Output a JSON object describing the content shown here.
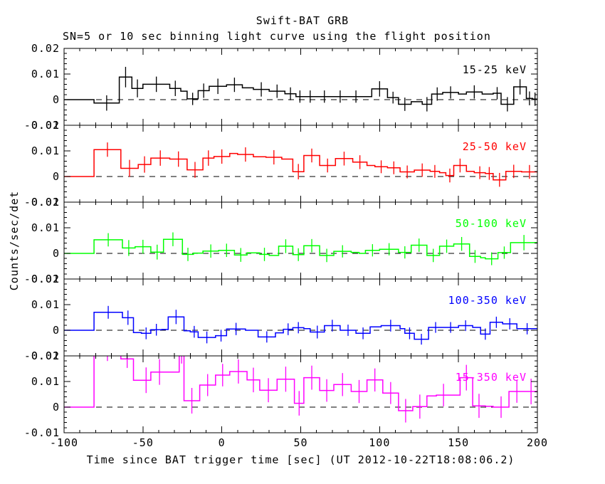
{
  "title": "Swift-BAT GRB",
  "subtitle": "SN=5 or 10 sec binning light curve using the flight position",
  "xlabel": "Time since BAT trigger time [sec] (UT 2012-10-22T18:08:06.2)",
  "ylabel": "Counts/sec/det",
  "x_axis_ticks": [
    {
      "v": -100,
      "label": "-100"
    },
    {
      "v": -50,
      "label": "-50"
    },
    {
      "v": 0,
      "label": "0"
    },
    {
      "v": 50,
      "label": "50"
    },
    {
      "v": 100,
      "label": "100"
    },
    {
      "v": 150,
      "label": "150"
    },
    {
      "v": 200,
      "label": "200"
    }
  ],
  "y_axis_ticks": [
    {
      "v": 0.02,
      "label": "0.02"
    },
    {
      "v": 0.01,
      "label": "0.01"
    },
    {
      "v": 0,
      "label": "0"
    },
    {
      "v": -0.01,
      "label": "-0.01"
    }
  ],
  "chart_data": {
    "type": "line",
    "style": "step-histogram-with-error-bars",
    "xlim": [
      -100,
      200
    ],
    "ylim_per_panel": [
      -0.01,
      0.02
    ],
    "grid": false,
    "zero_line": "dashed",
    "panels": [
      {
        "band": "15-25 keV",
        "color": "#000000",
        "bins": [
          [
            -100,
            -81,
            0,
            null
          ],
          [
            -81,
            -65,
            -0.0013,
            0.003
          ],
          [
            -65,
            -57,
            0.0088,
            0.004
          ],
          [
            -57,
            -50,
            0.0044,
            0.0035
          ],
          [
            -50,
            -33,
            0.006,
            0.003
          ],
          [
            -33,
            -26,
            0.0044,
            0.003
          ],
          [
            -26,
            -22,
            0.0033,
            null
          ],
          [
            -22,
            -15,
            0.0003,
            0.0024
          ],
          [
            -15,
            -8,
            0.0035,
            0.0028
          ],
          [
            -8,
            3,
            0.0052,
            0.003
          ],
          [
            3,
            13,
            0.0058,
            0.0028
          ],
          [
            13,
            20,
            0.0046,
            null
          ],
          [
            20,
            30,
            0.004,
            0.0028
          ],
          [
            30,
            40,
            0.0033,
            0.0026
          ],
          [
            40,
            47,
            0.0023,
            0.0025
          ],
          [
            47,
            52,
            0.0012,
            0.0024
          ],
          [
            52,
            60,
            0.0012,
            0.0024
          ],
          [
            60,
            70,
            0.0012,
            0.0024
          ],
          [
            70,
            80,
            0.0012,
            0.0024
          ],
          [
            80,
            90,
            0.0012,
            0.0024
          ],
          [
            90,
            95,
            0.0012,
            null
          ],
          [
            95,
            105,
            0.0042,
            0.003
          ],
          [
            105,
            112,
            0.0008,
            0.0023
          ],
          [
            112,
            120,
            -0.0018,
            0.0026
          ],
          [
            120,
            127,
            -0.0008,
            null
          ],
          [
            127,
            133,
            -0.0018,
            0.0028
          ],
          [
            133,
            140,
            0.0022,
            0.0026
          ],
          [
            140,
            150,
            0.0028,
            0.0024
          ],
          [
            150,
            155,
            0.0022,
            null
          ],
          [
            155,
            165,
            0.003,
            0.0026
          ],
          [
            165,
            172,
            0.0022,
            null
          ],
          [
            172,
            177,
            0.0025,
            0.0024
          ],
          [
            177,
            185,
            -0.0018,
            0.0028
          ],
          [
            185,
            193,
            0.005,
            0.003
          ],
          [
            193,
            197,
            0.0005,
            0.0027
          ],
          [
            197,
            200,
            0.0002,
            0.0026
          ]
        ]
      },
      {
        "band": "25-50 keV",
        "color": "#ff0000",
        "bins": [
          [
            -100,
            -81,
            0,
            null
          ],
          [
            -81,
            -64,
            0.0105,
            0.0028
          ],
          [
            -64,
            -53,
            0.0032,
            0.0033
          ],
          [
            -53,
            -45,
            0.0047,
            0.0032
          ],
          [
            -45,
            -33,
            0.0072,
            0.003
          ],
          [
            -33,
            -22,
            0.0068,
            0.003
          ],
          [
            -22,
            -12,
            0.0026,
            0.0031
          ],
          [
            -12,
            -5,
            0.0072,
            0.003
          ],
          [
            -5,
            5,
            0.0078,
            0.0028
          ],
          [
            5,
            10,
            0.009,
            null
          ],
          [
            10,
            20,
            0.0086,
            0.0028
          ],
          [
            20,
            28,
            0.0077,
            null
          ],
          [
            28,
            38,
            0.0075,
            0.0028
          ],
          [
            38,
            45,
            0.0068,
            null
          ],
          [
            45,
            52,
            0.0019,
            0.003
          ],
          [
            52,
            62,
            0.0082,
            0.0027
          ],
          [
            62,
            72,
            0.0043,
            0.0027
          ],
          [
            72,
            83,
            0.007,
            0.0027
          ],
          [
            83,
            92,
            0.0056,
            0.0027
          ],
          [
            92,
            97,
            0.0043,
            null
          ],
          [
            97,
            105,
            0.0038,
            0.0025
          ],
          [
            105,
            113,
            0.0034,
            0.0025
          ],
          [
            113,
            122,
            0.0018,
            0.0025
          ],
          [
            122,
            132,
            0.0025,
            0.0026
          ],
          [
            132,
            138,
            0.002,
            0.0025
          ],
          [
            138,
            142,
            0.0015,
            null
          ],
          [
            142,
            147,
            0.0004,
            0.0027
          ],
          [
            147,
            155,
            0.0043,
            0.0027
          ],
          [
            155,
            160,
            0.002,
            null
          ],
          [
            160,
            167,
            0.0015,
            0.0025
          ],
          [
            167,
            172,
            0.0012,
            0.0025
          ],
          [
            172,
            180,
            -0.0013,
            0.0027
          ],
          [
            180,
            190,
            0.002,
            0.0026
          ],
          [
            190,
            200,
            0.0018,
            0.0027
          ]
        ]
      },
      {
        "band": "50-100 keV",
        "color": "#00ff00",
        "bins": [
          [
            -100,
            -81,
            0,
            null
          ],
          [
            -81,
            -63,
            0.0053,
            0.0026
          ],
          [
            -63,
            -55,
            0.0021,
            0.0031
          ],
          [
            -55,
            -45,
            0.0026,
            0.0027
          ],
          [
            -45,
            -37,
            0.0005,
            0.0029
          ],
          [
            -37,
            -25,
            0.0055,
            0.0027
          ],
          [
            -25,
            -18,
            -0.0004,
            0.0026
          ],
          [
            -18,
            -12,
            0.0001,
            null
          ],
          [
            -12,
            -2,
            0.0009,
            0.0026
          ],
          [
            -2,
            8,
            0.0012,
            0.0026
          ],
          [
            8,
            16,
            -0.0006,
            0.0027
          ],
          [
            16,
            24,
            0.0002,
            null
          ],
          [
            24,
            30,
            -0.0004,
            0.0026
          ],
          [
            30,
            36,
            -0.0008,
            null
          ],
          [
            36,
            45,
            0.0028,
            0.0027
          ],
          [
            45,
            52,
            -0.0005,
            0.0025
          ],
          [
            52,
            62,
            0.003,
            0.0026
          ],
          [
            62,
            71,
            -0.0008,
            0.0026
          ],
          [
            71,
            82,
            0.0008,
            0.0024
          ],
          [
            82,
            87,
            0.0004,
            null
          ],
          [
            87,
            91,
            0,
            null
          ],
          [
            91,
            100,
            0.0012,
            0.0024
          ],
          [
            100,
            112,
            0.0016,
            0.0024
          ],
          [
            112,
            120,
            0.0004,
            0.0024
          ],
          [
            120,
            130,
            0.0032,
            0.0026
          ],
          [
            130,
            138,
            -0.0008,
            0.0026
          ],
          [
            138,
            147,
            0.0028,
            0.0026
          ],
          [
            147,
            157,
            0.0037,
            0.0027
          ],
          [
            157,
            164,
            -0.0012,
            0.0025
          ],
          [
            164,
            167,
            -0.0017,
            null
          ],
          [
            167,
            175,
            -0.0021,
            0.0025
          ],
          [
            175,
            183,
            0.0003,
            0.0024
          ],
          [
            183,
            200,
            0.0042,
            0.003
          ]
        ]
      },
      {
        "band": "100-350 keV",
        "color": "#0000ff",
        "bins": [
          [
            -100,
            -81,
            0,
            null
          ],
          [
            -81,
            -63,
            0.007,
            0.0025
          ],
          [
            -63,
            -56,
            0.0049,
            0.0028
          ],
          [
            -56,
            -51,
            -0.0009,
            null
          ],
          [
            -51,
            -45,
            -0.0012,
            0.0023
          ],
          [
            -45,
            -38,
            0.0002,
            0.0023
          ],
          [
            -38,
            -34,
            0.0003,
            null
          ],
          [
            -34,
            -24,
            0.0052,
            0.0028
          ],
          [
            -24,
            -20,
            -0.0002,
            null
          ],
          [
            -20,
            -15,
            -0.0006,
            0.0023
          ],
          [
            -15,
            -4,
            -0.0028,
            0.0023
          ],
          [
            -4,
            3,
            -0.0021,
            0.0023
          ],
          [
            3,
            15,
            0.0005,
            0.0024
          ],
          [
            15,
            23,
            0,
            null
          ],
          [
            23,
            34,
            -0.0026,
            0.0022
          ],
          [
            34,
            39,
            -0.001,
            null
          ],
          [
            39,
            45,
            0.0004,
            0.0023
          ],
          [
            45,
            52,
            0.001,
            0.0022
          ],
          [
            52,
            56,
            0.0006,
            null
          ],
          [
            56,
            65,
            -0.0007,
            0.0025
          ],
          [
            65,
            75,
            0.0018,
            0.0023
          ],
          [
            75,
            85,
            0,
            0.0022
          ],
          [
            85,
            94,
            -0.0012,
            0.0023
          ],
          [
            94,
            101,
            0.0013,
            null
          ],
          [
            101,
            113,
            0.0018,
            0.0023
          ],
          [
            113,
            116,
            0.0006,
            null
          ],
          [
            116,
            122,
            -0.0012,
            0.0023
          ],
          [
            122,
            131,
            -0.0035,
            0.0021
          ],
          [
            131,
            140,
            0.0011,
            0.0021
          ],
          [
            140,
            150,
            0.0011,
            0.0021
          ],
          [
            150,
            159,
            0.0018,
            0.0021
          ],
          [
            159,
            164,
            0.0011,
            null
          ],
          [
            164,
            170,
            -0.0015,
            0.0022
          ],
          [
            170,
            178,
            0.0031,
            0.0022
          ],
          [
            178,
            187,
            0.0025,
            0.0022
          ],
          [
            187,
            200,
            0.0006,
            0.0022
          ]
        ]
      },
      {
        "band": "15-350 keV",
        "color": "#ff00ff",
        "bins": [
          [
            -100,
            -81,
            0,
            null
          ],
          [
            -81,
            -64,
            0.022,
            0.004
          ],
          [
            -64,
            -56,
            0.0188,
            0.0035
          ],
          [
            -56,
            -51,
            0.0105,
            null
          ],
          [
            -51,
            -45,
            0.0105,
            0.005
          ],
          [
            -45,
            -34,
            0.0137,
            0.005
          ],
          [
            -34,
            -27,
            0.0137,
            null
          ],
          [
            -27,
            -24,
            0.021,
            0.004
          ],
          [
            -24,
            -14,
            0.0025,
            0.005
          ],
          [
            -14,
            -4,
            0.0086,
            0.0043
          ],
          [
            -4,
            5,
            0.0125,
            0.0044
          ],
          [
            5,
            16,
            0.0139,
            0.0047
          ],
          [
            16,
            24,
            0.0106,
            0.0048
          ],
          [
            24,
            35,
            0.0066,
            0.0047
          ],
          [
            35,
            46,
            0.0109,
            0.0049
          ],
          [
            46,
            52,
            0.0015,
            0.0048
          ],
          [
            52,
            62,
            0.0115,
            0.0047
          ],
          [
            62,
            71,
            0.0065,
            0.0044
          ],
          [
            71,
            82,
            0.0088,
            0.0045
          ],
          [
            82,
            92,
            0.0061,
            0.0045
          ],
          [
            92,
            102,
            0.0106,
            0.0045
          ],
          [
            102,
            112,
            0.0055,
            0.0043
          ],
          [
            112,
            121,
            -0.0014,
            0.0046
          ],
          [
            121,
            130,
            0.0002,
            0.0047
          ],
          [
            130,
            136,
            0.0044,
            null
          ],
          [
            136,
            145,
            0.0047,
            0.0044
          ],
          [
            145,
            151,
            0.0047,
            null
          ],
          [
            151,
            159,
            0.0115,
            0.005
          ],
          [
            159,
            167,
            0.0005,
            0.0047
          ],
          [
            167,
            172,
            0.0003,
            null
          ],
          [
            172,
            182,
            0,
            0.0042
          ],
          [
            182,
            192,
            0.0061,
            0.0044
          ],
          [
            192,
            200,
            0.0061,
            0.005
          ]
        ]
      }
    ]
  }
}
